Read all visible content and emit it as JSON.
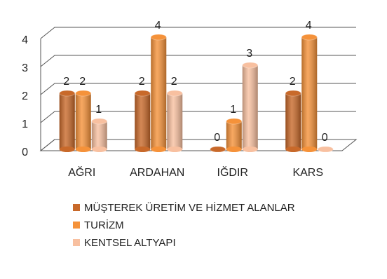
{
  "chart_data": {
    "type": "bar3d",
    "categories": [
      "AĞRI",
      "ARDAHAN",
      "IĞDIR",
      "KARS"
    ],
    "series": [
      {
        "name": "MÜŞTEREK ÜRETİM VE HİZMET ALANLAR",
        "color": "#c8692a",
        "values": [
          2,
          2,
          0,
          2
        ]
      },
      {
        "name": "TURİZM",
        "color": "#f5923a",
        "values": [
          2,
          4,
          1,
          4
        ]
      },
      {
        "name": "KENTSEL ALTYAPI",
        "color": "#f8c0a0",
        "values": [
          1,
          2,
          3,
          0
        ]
      }
    ],
    "ylim": [
      0,
      4
    ],
    "yticks": [
      0,
      1,
      2,
      3,
      4
    ],
    "grid": true
  }
}
